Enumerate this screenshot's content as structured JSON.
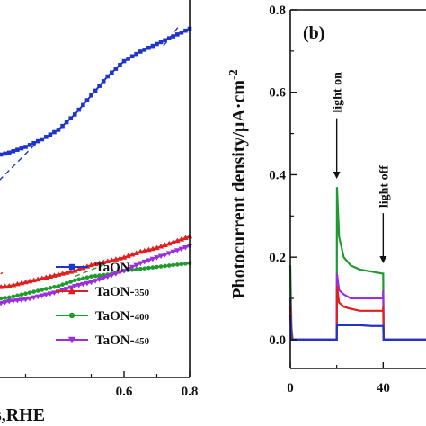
{
  "chart_data": [
    {
      "panel": "a",
      "type": "line",
      "xlabel_visible": "s,RHE",
      "xlim": [
        0.2,
        0.8
      ],
      "xticks": [
        0.6,
        0.8
      ],
      "xtick_labels": [
        "0.6",
        "0.8"
      ],
      "legend_placement": "bottom-right",
      "series": [
        {
          "name": "TaON",
          "color": "#1f35c8",
          "marker": "square",
          "x": [
            0.2,
            0.25,
            0.3,
            0.35,
            0.4,
            0.45,
            0.5,
            0.55,
            0.6,
            0.65,
            0.7,
            0.75,
            0.8
          ],
          "y": [
            0.58,
            0.59,
            0.605,
            0.625,
            0.65,
            0.69,
            0.74,
            0.79,
            0.83,
            0.855,
            0.875,
            0.895,
            0.915
          ]
        },
        {
          "name": "TaON-350",
          "color": "#e02020",
          "marker": "triangle-up",
          "x": [
            0.2,
            0.25,
            0.3,
            0.35,
            0.4,
            0.45,
            0.5,
            0.55,
            0.6,
            0.65,
            0.7,
            0.75,
            0.8
          ],
          "y": [
            0.235,
            0.24,
            0.25,
            0.26,
            0.27,
            0.28,
            0.295,
            0.305,
            0.315,
            0.33,
            0.34,
            0.355,
            0.37
          ]
        },
        {
          "name": "TaON-400",
          "color": "#1e9a2e",
          "marker": "circle",
          "x": [
            0.2,
            0.25,
            0.3,
            0.35,
            0.4,
            0.45,
            0.5,
            0.55,
            0.6,
            0.65,
            0.7,
            0.75,
            0.8
          ],
          "y": [
            0.205,
            0.21,
            0.22,
            0.23,
            0.24,
            0.255,
            0.265,
            0.27,
            0.28,
            0.285,
            0.29,
            0.295,
            0.3
          ]
        },
        {
          "name": "TaON-450",
          "color": "#9b30d8",
          "marker": "triangle-down",
          "x": [
            0.2,
            0.25,
            0.3,
            0.35,
            0.4,
            0.45,
            0.5,
            0.55,
            0.6,
            0.65,
            0.7,
            0.75,
            0.8
          ],
          "y": [
            0.19,
            0.2,
            0.205,
            0.215,
            0.225,
            0.24,
            0.25,
            0.265,
            0.28,
            0.3,
            0.315,
            0.33,
            0.345
          ]
        }
      ],
      "tangent_lines": [
        {
          "color": "#1f35c8",
          "x": [
            0.2,
            0.35
          ],
          "y": [
            0.5,
            0.63
          ]
        },
        {
          "color": "#1f35c8",
          "x": [
            0.72,
            0.77
          ],
          "y": [
            0.87,
            0.925
          ]
        },
        {
          "color": "#e02020",
          "x": [
            0.2,
            0.23
          ],
          "y": [
            0.26,
            0.275
          ]
        },
        {
          "color": "#1e9a2e",
          "x": [
            0.45,
            0.55
          ],
          "y": [
            0.265,
            0.3
          ]
        }
      ]
    },
    {
      "panel": "b",
      "type": "line",
      "panel_label": "(b)",
      "ylabel": "Photocurrent density/μA·cm",
      "ylabel_sup": "-2",
      "ylim": [
        -0.07,
        0.8
      ],
      "yticks": [
        0.0,
        0.2,
        0.4,
        0.6,
        0.8
      ],
      "ytick_labels": [
        "0.0",
        "0.2",
        "0.4",
        "0.6",
        "0.8"
      ],
      "xlim": [
        0,
        60
      ],
      "xticks": [
        0,
        40
      ],
      "xtick_labels": [
        "0",
        "40"
      ],
      "annotations": [
        {
          "text": "light on",
          "x": 20,
          "y_text": 0.55,
          "y_arrow": 0.39
        },
        {
          "text": "light off",
          "x": 40,
          "y_text": 0.32,
          "y_arrow": 0.185
        }
      ],
      "series": [
        {
          "name": "TaON-400",
          "color": "#1e9a2e",
          "x": [
            0,
            0.5,
            1,
            20,
            20.1,
            21,
            23,
            26,
            30,
            35,
            39.9,
            40,
            40.2,
            41,
            45,
            50,
            55,
            60
          ],
          "y": [
            0.18,
            0.03,
            0.0,
            0.0,
            0.37,
            0.25,
            0.2,
            0.18,
            0.17,
            0.165,
            0.16,
            0.16,
            0.0,
            0.0,
            0.0,
            0.0,
            0.0,
            0.0
          ]
        },
        {
          "name": "TaON-450",
          "color": "#9b30d8",
          "x": [
            0,
            0.5,
            1,
            20,
            20.1,
            21,
            23,
            26,
            30,
            35,
            39.9,
            40,
            40.2,
            41,
            45,
            50,
            55,
            60
          ],
          "y": [
            0.1,
            0.02,
            0.0,
            0.0,
            0.16,
            0.12,
            0.11,
            0.1,
            0.1,
            0.1,
            0.1,
            0.12,
            0.0,
            0.0,
            0.0,
            0.0,
            0.0,
            0.0
          ]
        },
        {
          "name": "TaON-350",
          "color": "#e02020",
          "x": [
            0,
            0.5,
            1,
            20,
            20.1,
            21,
            23,
            26,
            30,
            35,
            39.9,
            40,
            40.2,
            41,
            45,
            50,
            55,
            60
          ],
          "y": [
            0.08,
            0.01,
            0.0,
            0.0,
            0.13,
            0.09,
            0.08,
            0.075,
            0.07,
            0.07,
            0.07,
            0.08,
            0.0,
            0.0,
            0.0,
            0.0,
            0.0,
            0.0
          ]
        },
        {
          "name": "TaON",
          "color": "#1f35c8",
          "x": [
            0,
            0.5,
            1,
            20,
            20.1,
            21,
            25,
            30,
            35,
            39.9,
            40,
            40.2,
            41,
            45,
            50,
            55,
            60
          ],
          "y": [
            0.06,
            0.0,
            0.0,
            0.0,
            0.035,
            0.035,
            0.035,
            0.035,
            0.033,
            0.033,
            0.033,
            0.0,
            0.0,
            0.0,
            0.0,
            0.0,
            0.0
          ]
        }
      ]
    }
  ],
  "legend": [
    {
      "label": "TaON",
      "sub": "",
      "color": "#1f35c8",
      "marker": "square"
    },
    {
      "label": "TaON-",
      "sub": "350",
      "color": "#e02020",
      "marker": "triangle-up"
    },
    {
      "label": "TaON-",
      "sub": "400",
      "color": "#1e9a2e",
      "marker": "circle"
    },
    {
      "label": "TaON-",
      "sub": "450",
      "color": "#9b30d8",
      "marker": "triangle-down"
    }
  ]
}
